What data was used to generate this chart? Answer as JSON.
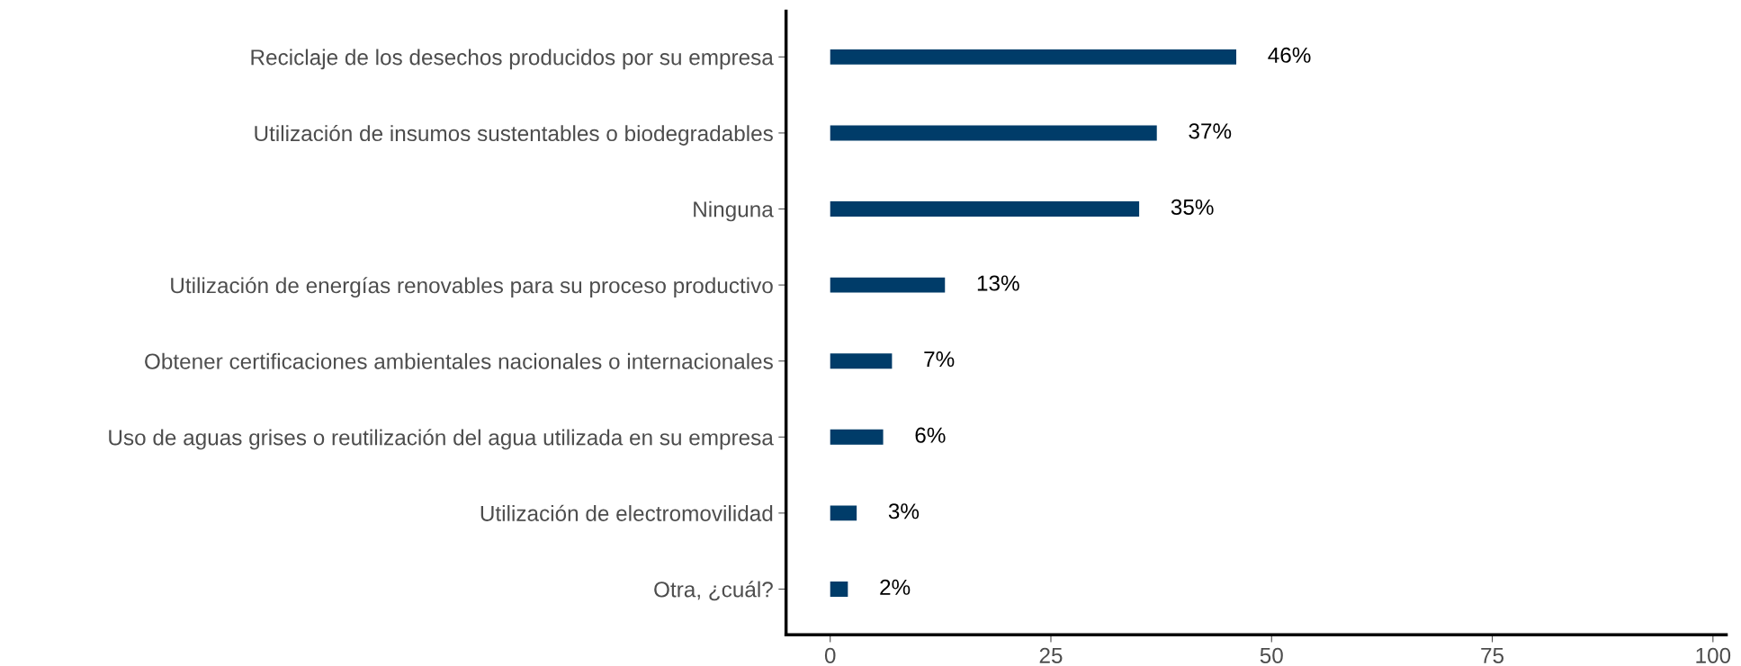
{
  "chart_data": {
    "type": "bar",
    "orientation": "horizontal",
    "categories": [
      "Reciclaje de los desechos producidos por su empresa",
      "Utilización de insumos sustentables o biodegradables",
      "Ninguna",
      "Utilización de energías renovables para su proceso productivo",
      "Obtener certificaciones ambientales nacionales o internacionales",
      "Uso de aguas grises o reutilización del agua utilizada en su empresa",
      "Utilización de electromovilidad",
      "Otra, ¿cuál?"
    ],
    "values": [
      46,
      37,
      35,
      13,
      7,
      6,
      3,
      2
    ],
    "value_labels": [
      "46%",
      "37%",
      "35%",
      "13%",
      "7%",
      "6%",
      "3%",
      "2%"
    ],
    "color": "#003c69",
    "xlim": [
      -5,
      101.5
    ],
    "xticks": [
      0,
      25,
      50,
      75,
      100
    ],
    "grid": false,
    "legend": false
  }
}
